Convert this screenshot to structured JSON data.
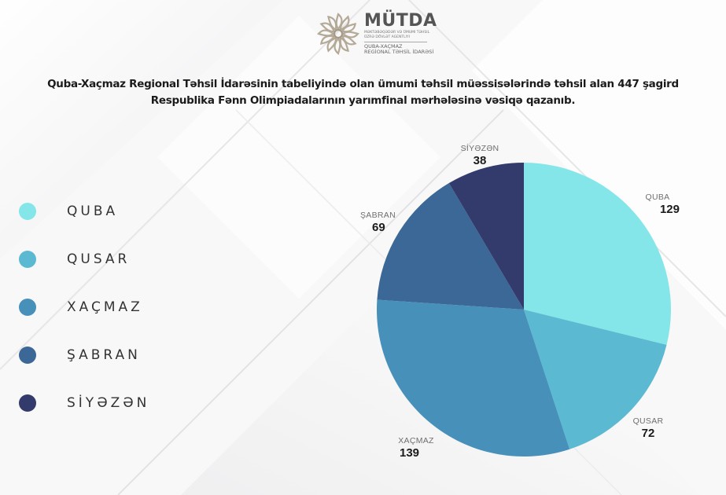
{
  "logo": {
    "title": "MÜTDA",
    "subtitle_line1": "Məktəbəqədər və ümumi təhsil",
    "subtitle_line2": "üzrə dövlət agentliyi",
    "region_line1": "QUBA-XAÇMAZ",
    "region_line2": "REGİONAL TƏHSİL İDARƏSİ"
  },
  "headline": {
    "line1": "Quba-Xaçmaz Regional Təhsil İdarəsinin tabeliyində olan ümumi təhsil müəssisələrində təhsil alan 447 şagird",
    "line2": "Respublika Fənn Olimpiadalarının yarımfinal mərhələsinə vəsiqə qazanıb."
  },
  "legend": {
    "items": [
      {
        "label": "QUBA",
        "color": "#84e6e8"
      },
      {
        "label": "QUSAR",
        "color": "#5bbad2"
      },
      {
        "label": "XAÇMAZ",
        "color": "#4690ba"
      },
      {
        "label": "ŞABRAN",
        "color": "#3b6897"
      },
      {
        "label": "SİYƏZƏN",
        "color": "#323b6c"
      }
    ]
  },
  "chart_data": {
    "type": "pie",
    "title": "Quba-Xaçmaz Regional Təhsil İdarəsinin tabeliyində olan ümumi təhsil müəssisələrində təhsil alan 447 şagird Respublika Fənn Olimpiadalarının yarımfinal mərhələsinə vəsiqə qazanıb.",
    "categories": [
      "QUBA",
      "QUSAR",
      "XAÇMAZ",
      "ŞABRAN",
      "SİYƏZƏN"
    ],
    "values": [
      129,
      72,
      139,
      69,
      38
    ],
    "colors": [
      "#84e6e8",
      "#5bbad2",
      "#4690ba",
      "#3b6897",
      "#323b6c"
    ],
    "total": 447,
    "start_angle": "12 o'clock",
    "direction": "clockwise",
    "legend_position": "left",
    "slice_labels": [
      {
        "name": "QUBA",
        "value": "129"
      },
      {
        "name": "QUSAR",
        "value": "72"
      },
      {
        "name": "XAÇMAZ",
        "value": "139"
      },
      {
        "name": "ŞABRAN",
        "value": "69"
      },
      {
        "name": "SİYƏZƏN",
        "value": "38"
      }
    ]
  }
}
